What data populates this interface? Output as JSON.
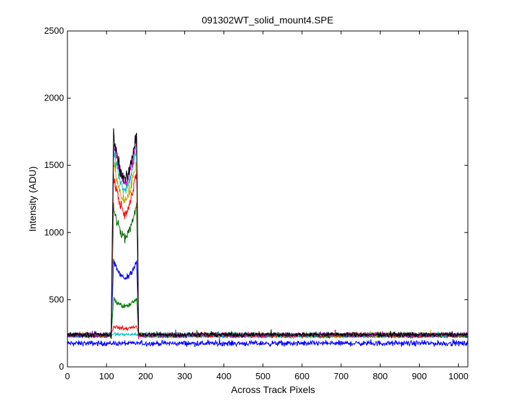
{
  "chart_data": {
    "type": "line",
    "title": "091302WT_solid_mount4.SPE",
    "xlabel": "Across Track Pixels",
    "ylabel": "Intensity (ADU)",
    "xlim": [
      0,
      1024
    ],
    "ylim": [
      0,
      2500
    ],
    "xticks": [
      0,
      100,
      200,
      300,
      400,
      500,
      600,
      700,
      800,
      900,
      1000
    ],
    "yticks": [
      0,
      500,
      1000,
      1500,
      2000,
      2500
    ],
    "grid": false,
    "legend": "none",
    "colors": {
      "background": "#ffffff",
      "axes": "#000000"
    },
    "profile": {
      "x_start": 0,
      "x_end": 1023,
      "plateau_start": 112,
      "plateau_end": 182
    },
    "series": [
      {
        "color": "#0000ff",
        "baseline": 175,
        "edge_peak": 175,
        "center_dip": 175,
        "noise": 14
      },
      {
        "color": "#00bfbf",
        "baseline": 228,
        "edge_peak": 245,
        "center_dip": 240,
        "noise": 8
      },
      {
        "color": "#ff0000",
        "baseline": 232,
        "edge_peak": 310,
        "center_dip": 285,
        "noise": 9
      },
      {
        "color": "#008000",
        "baseline": 235,
        "edge_peak": 520,
        "center_dip": 450,
        "noise": 10
      },
      {
        "color": "#0000ff",
        "baseline": 236,
        "edge_peak": 820,
        "center_dip": 660,
        "noise": 10
      },
      {
        "color": "#006400",
        "baseline": 237,
        "edge_peak": 1280,
        "center_dip": 960,
        "noise": 12
      },
      {
        "color": "#ff0000",
        "baseline": 238,
        "edge_peak": 1520,
        "center_dip": 1150,
        "noise": 12
      },
      {
        "color": "#c8a000",
        "baseline": 238,
        "edge_peak": 1620,
        "center_dip": 1240,
        "noise": 12
      },
      {
        "color": "#00bfbf",
        "baseline": 239,
        "edge_peak": 1720,
        "center_dip": 1320,
        "noise": 12
      },
      {
        "color": "#bf00bf",
        "baseline": 239,
        "edge_peak": 1790,
        "center_dip": 1370,
        "noise": 12
      },
      {
        "color": "#000000",
        "baseline": 240,
        "edge_peak": 1860,
        "center_dip": 1390,
        "noise": 12
      }
    ]
  }
}
